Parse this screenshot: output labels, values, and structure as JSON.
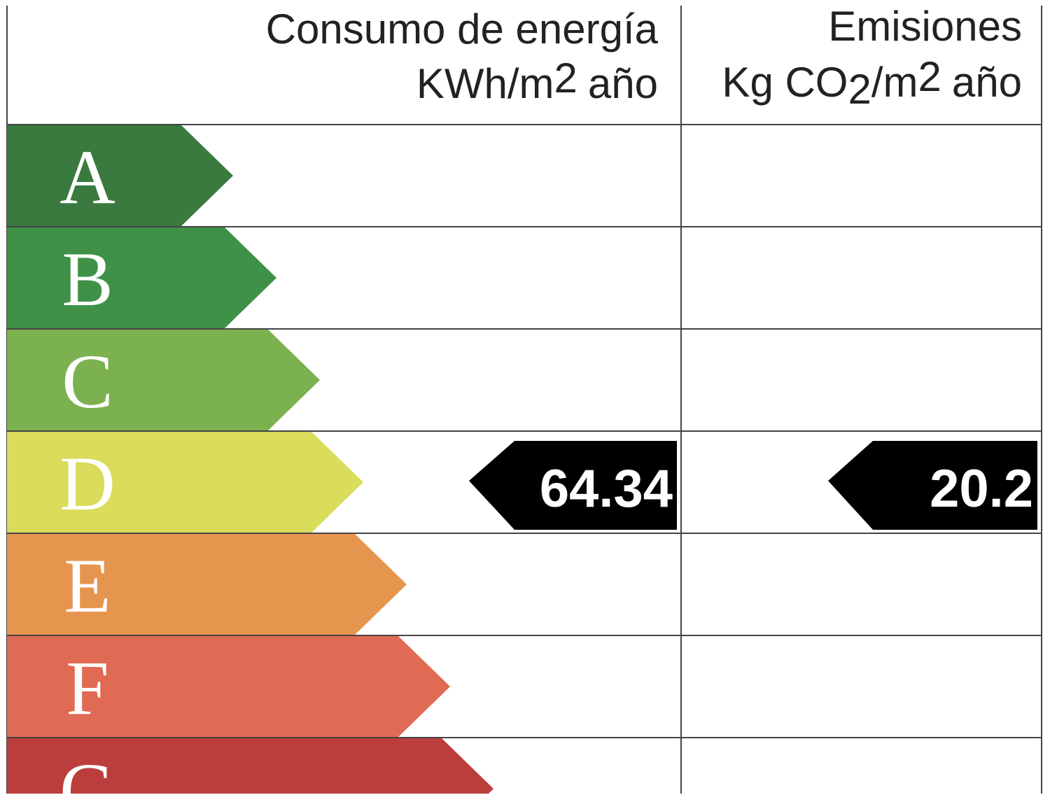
{
  "header": {
    "energy_title": "Consumo de energía",
    "energy_unit": [
      "KWh/m",
      "2",
      "año"
    ],
    "emissions_title": "Emisiones",
    "emissions_unit": [
      "Kg CO",
      "2",
      "/m",
      "2",
      "año"
    ]
  },
  "rows": [
    {
      "letter": "A",
      "color": "#3b7a3f"
    },
    {
      "letter": "B",
      "color": "#3f9147"
    },
    {
      "letter": "C",
      "color": "#7cb14f"
    },
    {
      "letter": "D",
      "color": "#dadc5b",
      "energy": 64.34,
      "emissions": 20.2
    },
    {
      "letter": "E",
      "color": "#e6954f"
    },
    {
      "letter": "F",
      "color": "#e06a53"
    },
    {
      "letter": "G",
      "color": "#bb3e3c"
    }
  ]
}
